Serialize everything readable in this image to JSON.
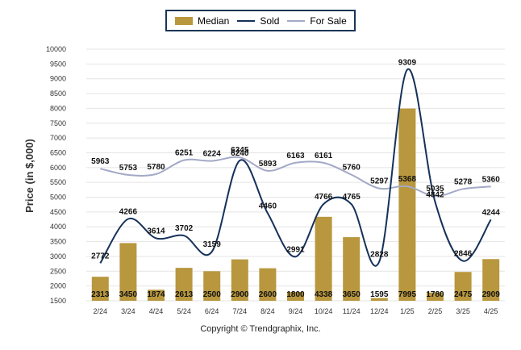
{
  "legend": {
    "items": [
      {
        "label": "Median",
        "kind": "bar",
        "color": "#b8973e"
      },
      {
        "label": "Sold",
        "kind": "line",
        "color": "#15315a"
      },
      {
        "label": "For Sale",
        "kind": "line",
        "color": "#a3a9c6"
      }
    ]
  },
  "footer": {
    "copyright": "Copyright © Trendgraphix, Inc."
  },
  "chart_data": {
    "type": "bar",
    "title": "",
    "xlabel": "",
    "ylabel": "Price (in $,000)",
    "ylim": [
      1500,
      10000
    ],
    "yticks": [
      1500,
      2000,
      2500,
      3000,
      3500,
      4000,
      4500,
      5000,
      5500,
      6000,
      6500,
      7000,
      7500,
      8000,
      8500,
      9000,
      9500,
      10000
    ],
    "grid": true,
    "legend_position": "top-center",
    "categories": [
      "2/24",
      "3/24",
      "4/24",
      "5/24",
      "6/24",
      "7/24",
      "8/24",
      "9/24",
      "10/24",
      "11/24",
      "12/24",
      "1/25",
      "2/25",
      "3/25",
      "4/25"
    ],
    "series": [
      {
        "name": "Median",
        "kind": "bar",
        "color": "#b8973e",
        "values": [
          2313,
          3450,
          1874,
          2613,
          2500,
          2900,
          2600,
          1800,
          4338,
          3650,
          1595,
          7995,
          1780,
          2475,
          2909
        ]
      },
      {
        "name": "Sold",
        "kind": "line",
        "color": "#15315a",
        "values": [
          2772,
          4266,
          3614,
          3702,
          3159,
          6240,
          4460,
          2991,
          4766,
          4765,
          2828,
          9309,
          4842,
          2846,
          4244
        ]
      },
      {
        "name": "For Sale",
        "kind": "line",
        "color": "#a3a9c6",
        "values": [
          5963,
          5753,
          5780,
          6251,
          6224,
          6345,
          5893,
          6163,
          6161,
          5760,
          5297,
          5368,
          5035,
          5278,
          5360
        ]
      }
    ]
  }
}
